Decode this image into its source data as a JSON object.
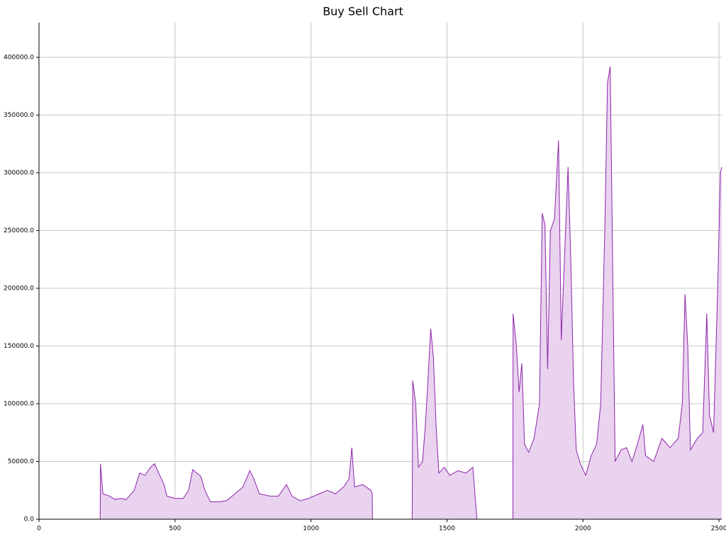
{
  "chart_data": {
    "type": "area",
    "title": "Buy Sell Chart",
    "x": [
      0,
      225,
      226,
      235,
      260,
      280,
      300,
      320,
      350,
      370,
      390,
      410,
      425,
      440,
      460,
      470,
      500,
      530,
      550,
      565,
      580,
      595,
      610,
      630,
      660,
      690,
      720,
      750,
      775,
      790,
      810,
      850,
      880,
      910,
      930,
      960,
      990,
      1030,
      1060,
      1090,
      1120,
      1140,
      1150,
      1160,
      1190,
      1220,
      1225,
      1226,
      1372,
      1374,
      1385,
      1395,
      1410,
      1420,
      1430,
      1440,
      1450,
      1460,
      1470,
      1490,
      1510,
      1540,
      1570,
      1595,
      1600,
      1610,
      1742,
      1743,
      1755,
      1765,
      1775,
      1785,
      1800,
      1820,
      1840,
      1850,
      1860,
      1870,
      1880,
      1895,
      1910,
      1920,
      1935,
      1945,
      1955,
      1965,
      1975,
      1990,
      2010,
      2030,
      2050,
      2065,
      2080,
      2090,
      2100,
      2110,
      2118,
      2140,
      2160,
      2180,
      2200,
      2220,
      2230,
      2260,
      2290,
      2320,
      2350,
      2365,
      2375,
      2385,
      2395,
      2420,
      2440,
      2455,
      2465,
      2480,
      2495,
      2505,
      2510
    ],
    "values": [
      0,
      0,
      48000,
      22000,
      20000,
      17000,
      18000,
      17000,
      25000,
      40000,
      38000,
      45000,
      48000,
      40000,
      30000,
      20000,
      18000,
      18000,
      25000,
      43000,
      40000,
      37000,
      25000,
      15000,
      15000,
      16000,
      22000,
      28000,
      42000,
      35000,
      22000,
      20000,
      20000,
      30000,
      20000,
      16000,
      18000,
      22000,
      25000,
      22000,
      28000,
      35000,
      62000,
      28000,
      30000,
      25000,
      22000,
      0,
      0,
      120000,
      100000,
      45000,
      50000,
      80000,
      120000,
      165000,
      140000,
      80000,
      40000,
      45000,
      38000,
      42000,
      40000,
      45000,
      30000,
      0,
      0,
      178000,
      150000,
      110000,
      135000,
      65000,
      58000,
      70000,
      100000,
      265000,
      255000,
      130000,
      250000,
      260000,
      328000,
      155000,
      245000,
      305000,
      225000,
      120000,
      60000,
      48000,
      38000,
      55000,
      65000,
      100000,
      250000,
      378000,
      392000,
      200000,
      50000,
      60000,
      62000,
      50000,
      65000,
      82000,
      55000,
      50000,
      70000,
      62000,
      70000,
      100000,
      195000,
      150000,
      60000,
      70000,
      75000,
      178000,
      90000,
      75000,
      200000,
      300000,
      305000
    ],
    "line_color": "#8e24aa",
    "fill_color": "#e9d3ef",
    "xlim": [
      0,
      2510
    ],
    "ylim": [
      0,
      430000
    ],
    "xticks": [
      0,
      500,
      1000,
      1500,
      2000,
      2500
    ],
    "yticks": [
      {
        "value": 0,
        "label": "0.0"
      },
      {
        "value": 50000,
        "label": "50000.0"
      },
      {
        "value": 100000,
        "label": "100000.0"
      },
      {
        "value": 150000,
        "label": "150000.0"
      },
      {
        "value": 200000,
        "label": "200000.0"
      },
      {
        "value": 250000,
        "label": "250000.0"
      },
      {
        "value": 300000,
        "label": "300000.0"
      },
      {
        "value": 350000,
        "label": "350000.0"
      },
      {
        "value": 400000,
        "label": "400000.0"
      }
    ],
    "grid": true
  }
}
